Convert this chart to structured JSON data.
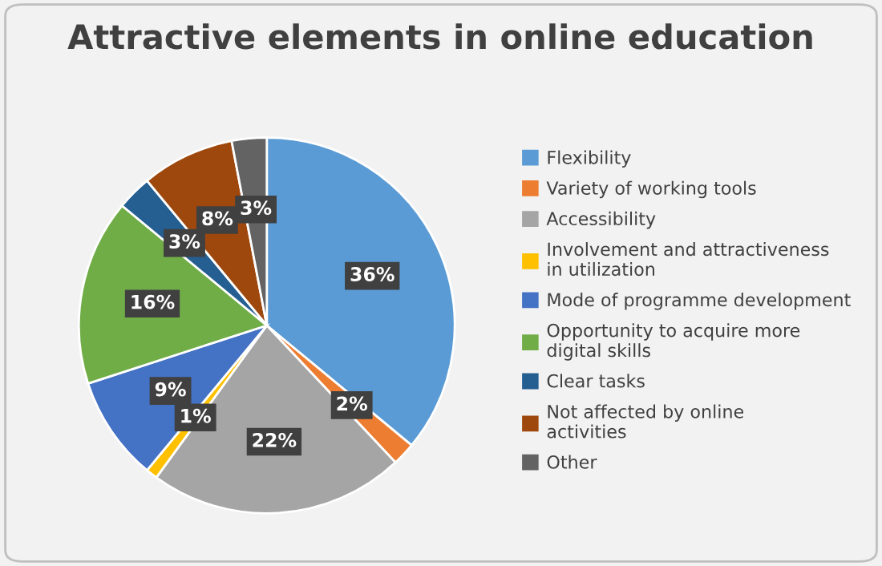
{
  "chart_data": {
    "type": "pie",
    "title": "Attractive elements in online education",
    "categories": [
      "Flexibility",
      "Variety of working tools",
      "Accessibility",
      "Involvement and attractiveness in utilization",
      "Mode of programme development",
      "Opportunity to acquire more digital skills",
      "Clear tasks",
      "Not affected by online activities",
      "Other"
    ],
    "values": [
      36,
      2,
      22,
      1,
      9,
      16,
      3,
      8,
      3
    ],
    "colors": [
      "#5b9bd5",
      "#ed7d31",
      "#a5a5a5",
      "#ffc000",
      "#4472c4",
      "#70ad47",
      "#255e91",
      "#9e480e",
      "#636363"
    ],
    "value_labels": [
      "36%",
      "2%",
      "22%",
      "1%",
      "9%",
      "16%",
      "3%",
      "8%",
      "3%"
    ],
    "legend": "right"
  }
}
